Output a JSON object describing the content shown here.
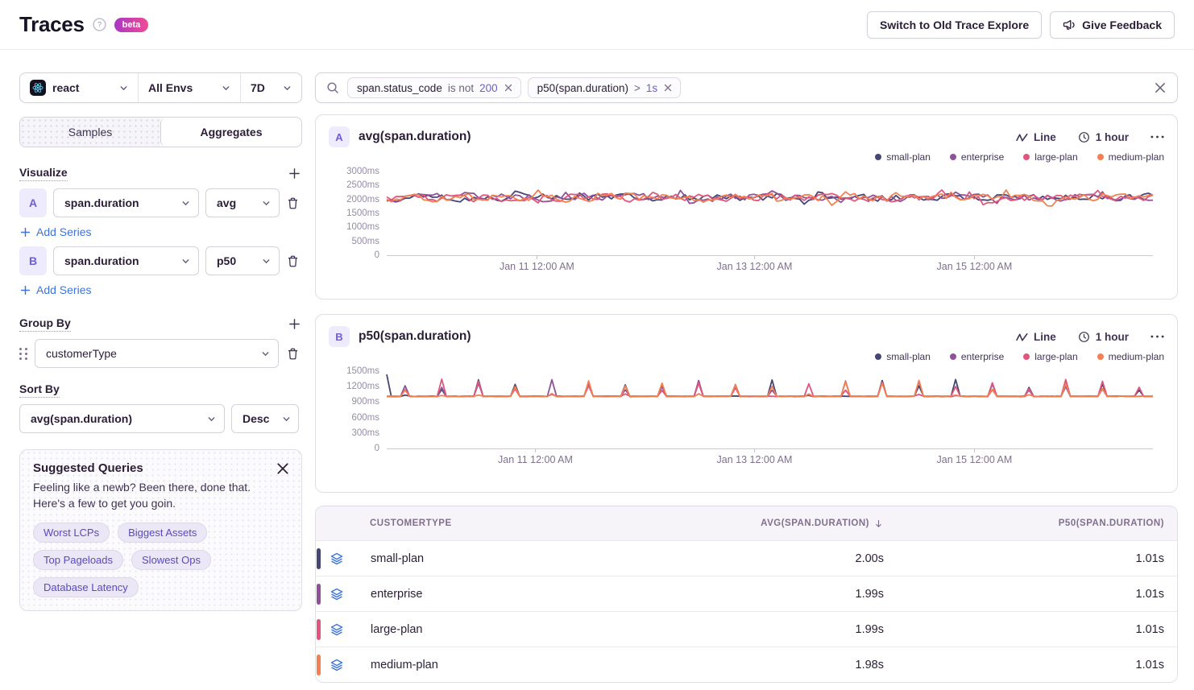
{
  "header": {
    "title": "Traces",
    "beta_badge": "beta",
    "switch_button": "Switch to Old Trace Explore",
    "feedback_button": "Give Feedback"
  },
  "filters": {
    "project": "react",
    "environment": "All Envs",
    "period": "7D"
  },
  "tabs": {
    "samples": "Samples",
    "aggregates": "Aggregates",
    "active": "Aggregates"
  },
  "visualize": {
    "label": "Visualize",
    "add_series_label": "Add Series",
    "series": [
      {
        "badge": "A",
        "field": "span.duration",
        "aggregate": "avg"
      },
      {
        "badge": "B",
        "field": "span.duration",
        "aggregate": "p50"
      }
    ]
  },
  "group_by": {
    "label": "Group By",
    "value": "customerType"
  },
  "sort_by": {
    "label": "Sort By",
    "field": "avg(span.duration)",
    "direction": "Desc"
  },
  "suggested_queries": {
    "title": "Suggested Queries",
    "description": "Feeling like a newb? Been there, done that. Here's a few to get you goin.",
    "chips": [
      "Worst LCPs",
      "Biggest Assets",
      "Top Pageloads",
      "Slowest Ops",
      "Database Latency"
    ]
  },
  "search": {
    "chips": [
      {
        "key": "span.status_code",
        "op": "is not",
        "value": "200"
      },
      {
        "key": "p50(span.duration)",
        "op": ">",
        "value": "1s"
      }
    ]
  },
  "colors": {
    "accent_purple": "#6C5FC7",
    "link_blue": "#3C74DB",
    "layers_icon_blue": "#3D74DB",
    "series_palette": [
      "#444674",
      "#8F5299",
      "#E1567C",
      "#F38150"
    ]
  },
  "chart_data": [
    {
      "type": "line",
      "badge": "A",
      "title": "avg(span.duration)",
      "controls": {
        "chart_type": "Line",
        "interval": "1 hour"
      },
      "legend": [
        "small-plan",
        "enterprise",
        "large-plan",
        "medium-plan"
      ],
      "colors": [
        "#444674",
        "#8F5299",
        "#E1567C",
        "#F38150"
      ],
      "ylabel_unit": "ms",
      "ylim": [
        0,
        3000
      ],
      "ymax": 3000,
      "y_ticks": [
        {
          "v": 0,
          "label": "0"
        },
        {
          "v": 500,
          "label": "500ms"
        },
        {
          "v": 1000,
          "label": "1000ms"
        },
        {
          "v": 1500,
          "label": "1500ms"
        },
        {
          "v": 2000,
          "label": "2000ms"
        },
        {
          "v": 2500,
          "label": "2500ms"
        },
        {
          "v": 3000,
          "label": "3000ms"
        }
      ],
      "x_ticks": [
        {
          "pos": 0.196,
          "label": "Jan 11 12:00 AM"
        },
        {
          "pos": 0.48,
          "label": "Jan 13 12:00 AM"
        },
        {
          "pos": 0.767,
          "label": "Jan 15 12:00 AM"
        }
      ],
      "series_stats": [
        {
          "name": "small-plan",
          "avg": "2.00s"
        },
        {
          "name": "enterprise",
          "avg": "1.99s"
        },
        {
          "name": "large-plan",
          "avg": "1.99s"
        },
        {
          "name": "medium-plan",
          "avg": "1.98s"
        }
      ],
      "gen": {
        "kind": "noisy",
        "n": 168,
        "base": 2060,
        "noise": 190,
        "bump": 300,
        "dip": 230,
        "min": 1740,
        "max": 2460,
        "seed": 11
      }
    },
    {
      "type": "line",
      "badge": "B",
      "title": "p50(span.duration)",
      "controls": {
        "chart_type": "Line",
        "interval": "1 hour"
      },
      "legend": [
        "small-plan",
        "enterprise",
        "large-plan",
        "medium-plan"
      ],
      "colors": [
        "#444674",
        "#8F5299",
        "#E1567C",
        "#F38150"
      ],
      "ylabel_unit": "ms",
      "ylim": [
        0,
        1500
      ],
      "ymax": 1500,
      "y_ticks": [
        {
          "v": 0,
          "label": "0"
        },
        {
          "v": 300,
          "label": "300ms"
        },
        {
          "v": 600,
          "label": "600ms"
        },
        {
          "v": 900,
          "label": "900ms"
        },
        {
          "v": 1200,
          "label": "1200ms"
        },
        {
          "v": 1500,
          "label": "1500ms"
        }
      ],
      "x_ticks": [
        {
          "pos": 0.194,
          "label": "Jan 11 12:00 AM"
        },
        {
          "pos": 0.48,
          "label": "Jan 13 12:00 AM"
        },
        {
          "pos": 0.767,
          "label": "Jan 15 12:00 AM"
        }
      ],
      "series_stats": [
        {
          "name": "small-plan",
          "p50": "1.01s"
        },
        {
          "name": "enterprise",
          "p50": "1.01s"
        },
        {
          "name": "large-plan",
          "p50": "1.01s"
        },
        {
          "name": "medium-plan",
          "p50": "1.01s"
        }
      ],
      "gen": {
        "kind": "spiky",
        "n": 168,
        "base": 1006,
        "jitter": 12,
        "period": 8,
        "phase": 4,
        "spikeMin": 120,
        "spikeMax": 340,
        "startSpike": 430,
        "seed": 29
      }
    }
  ],
  "results_table": {
    "columns": [
      {
        "label": "CUSTOMERTYPE",
        "align": "left"
      },
      {
        "label": "AVG(SPAN.DURATION)",
        "align": "right",
        "sorted": "desc"
      },
      {
        "label": "P50(SPAN.DURATION)",
        "align": "right"
      }
    ],
    "rows": [
      {
        "name": "small-plan",
        "color": "#444674",
        "avg": "2.00s",
        "p50": "1.01s"
      },
      {
        "name": "enterprise",
        "color": "#8F5299",
        "avg": "1.99s",
        "p50": "1.01s"
      },
      {
        "name": "large-plan",
        "color": "#E1567C",
        "avg": "1.99s",
        "p50": "1.01s"
      },
      {
        "name": "medium-plan",
        "color": "#F38150",
        "avg": "1.98s",
        "p50": "1.01s"
      }
    ]
  }
}
